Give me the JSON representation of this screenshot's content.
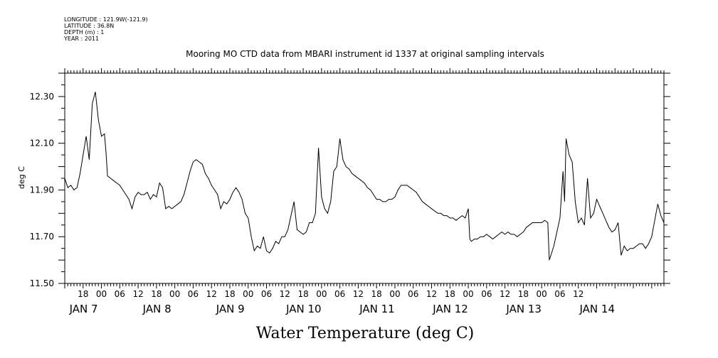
{
  "header": {
    "longitude": "LONGITUDE : 121.9W(-121.9)",
    "latitude": "LATITUDE : 36.8N",
    "depth": "DEPTH (m) : 1",
    "year": "YEAR : 2011"
  },
  "chart_data": {
    "type": "line",
    "title": "Mooring MO CTD data from MBARI instrument id 1337 at original sampling intervals",
    "xlabel": "Water Temperature (deg C)",
    "ylabel": "deg C",
    "ylim": [
      11.5,
      12.4
    ],
    "y_ticks": [
      "11.50",
      "11.70",
      "11.90",
      "12.10",
      "12.30"
    ],
    "y_tick_values": [
      11.5,
      11.7,
      11.9,
      12.1,
      12.3
    ],
    "xlim": [
      "2011-01-06T12:00",
      "2011-01-14T16:00"
    ],
    "x_hour_ticks": [
      {
        "t": "2011-01-06T18:00",
        "label": "18"
      },
      {
        "t": "2011-01-07T00:00",
        "label": "00"
      },
      {
        "t": "2011-01-07T06:00",
        "label": "06"
      },
      {
        "t": "2011-01-07T12:00",
        "label": "12"
      },
      {
        "t": "2011-01-07T18:00",
        "label": "18"
      },
      {
        "t": "2011-01-08T00:00",
        "label": "00"
      },
      {
        "t": "2011-01-08T06:00",
        "label": "06"
      },
      {
        "t": "2011-01-08T12:00",
        "label": "12"
      },
      {
        "t": "2011-01-08T18:00",
        "label": "18"
      },
      {
        "t": "2011-01-09T00:00",
        "label": "00"
      },
      {
        "t": "2011-01-09T06:00",
        "label": "06"
      },
      {
        "t": "2011-01-09T12:00",
        "label": "12"
      },
      {
        "t": "2011-01-09T18:00",
        "label": "18"
      },
      {
        "t": "2011-01-10T00:00",
        "label": "00"
      },
      {
        "t": "2011-01-10T06:00",
        "label": "06"
      },
      {
        "t": "2011-01-10T12:00",
        "label": "12"
      },
      {
        "t": "2011-01-10T18:00",
        "label": "18"
      },
      {
        "t": "2011-01-11T00:00",
        "label": "00"
      },
      {
        "t": "2011-01-11T06:00",
        "label": "06"
      },
      {
        "t": "2011-01-11T12:00",
        "label": "12"
      },
      {
        "t": "2011-01-11T18:00",
        "label": "18"
      },
      {
        "t": "2011-01-12T00:00",
        "label": "00"
      },
      {
        "t": "2011-01-12T06:00",
        "label": "06"
      },
      {
        "t": "2011-01-12T12:00",
        "label": "12"
      },
      {
        "t": "2011-01-12T18:00",
        "label": "18"
      },
      {
        "t": "2011-01-13T00:00",
        "label": "00"
      },
      {
        "t": "2011-01-13T06:00",
        "label": "06"
      },
      {
        "t": "2011-01-13T12:00",
        "label": "12"
      }
    ],
    "x_day_labels": [
      {
        "t": "2011-01-07T00:00",
        "label": "JAN  7"
      },
      {
        "t": "2011-01-08T00:00",
        "label": "JAN  8"
      },
      {
        "t": "2011-01-09T00:00",
        "label": "JAN  9"
      },
      {
        "t": "2011-01-10T00:00",
        "label": "JAN 10"
      },
      {
        "t": "2011-01-11T00:00",
        "label": "JAN 11"
      },
      {
        "t": "2011-01-12T00:00",
        "label": "JAN 12"
      },
      {
        "t": "2011-01-13T00:00",
        "label": "JAN 13"
      },
      {
        "t": "2011-01-14T00:00",
        "label": "JAN 14"
      }
    ],
    "grid": false,
    "series": [
      {
        "color": "#000000",
        "points": [
          [
            "2011-01-06T12:00",
            11.95
          ],
          [
            "2011-01-06T13:00",
            11.91
          ],
          [
            "2011-01-06T14:00",
            11.92
          ],
          [
            "2011-01-06T15:00",
            11.9
          ],
          [
            "2011-01-06T16:00",
            11.91
          ],
          [
            "2011-01-06T17:00",
            11.97
          ],
          [
            "2011-01-06T18:00",
            12.05
          ],
          [
            "2011-01-06T19:00",
            12.13
          ],
          [
            "2011-01-06T20:00",
            12.03
          ],
          [
            "2011-01-06T21:00",
            12.27
          ],
          [
            "2011-01-06T22:00",
            12.32
          ],
          [
            "2011-01-06T23:00",
            12.2
          ],
          [
            "2011-01-07T00:00",
            12.13
          ],
          [
            "2011-01-07T01:00",
            12.14
          ],
          [
            "2011-01-07T01:30",
            12.06
          ],
          [
            "2011-01-07T02:00",
            11.96
          ],
          [
            "2011-01-07T03:00",
            11.95
          ],
          [
            "2011-01-07T04:00",
            11.94
          ],
          [
            "2011-01-07T05:00",
            11.93
          ],
          [
            "2011-01-07T06:00",
            11.92
          ],
          [
            "2011-01-07T07:00",
            11.9
          ],
          [
            "2011-01-07T08:00",
            11.88
          ],
          [
            "2011-01-07T09:00",
            11.86
          ],
          [
            "2011-01-07T10:00",
            11.82
          ],
          [
            "2011-01-07T11:00",
            11.87
          ],
          [
            "2011-01-07T12:00",
            11.89
          ],
          [
            "2011-01-07T13:00",
            11.88
          ],
          [
            "2011-01-07T14:00",
            11.88
          ],
          [
            "2011-01-07T15:00",
            11.89
          ],
          [
            "2011-01-07T16:00",
            11.86
          ],
          [
            "2011-01-07T17:00",
            11.88
          ],
          [
            "2011-01-07T18:00",
            11.87
          ],
          [
            "2011-01-07T19:00",
            11.93
          ],
          [
            "2011-01-07T20:00",
            11.91
          ],
          [
            "2011-01-07T21:00",
            11.82
          ],
          [
            "2011-01-07T22:00",
            11.83
          ],
          [
            "2011-01-07T23:00",
            11.82
          ],
          [
            "2011-01-08T00:00",
            11.83
          ],
          [
            "2011-01-08T01:00",
            11.84
          ],
          [
            "2011-01-08T02:00",
            11.85
          ],
          [
            "2011-01-08T03:00",
            11.88
          ],
          [
            "2011-01-08T04:00",
            11.93
          ],
          [
            "2011-01-08T05:00",
            11.98
          ],
          [
            "2011-01-08T06:00",
            12.02
          ],
          [
            "2011-01-08T07:00",
            12.03
          ],
          [
            "2011-01-08T08:00",
            12.02
          ],
          [
            "2011-01-08T09:00",
            12.01
          ],
          [
            "2011-01-08T10:00",
            11.97
          ],
          [
            "2011-01-08T11:00",
            11.95
          ],
          [
            "2011-01-08T12:00",
            11.92
          ],
          [
            "2011-01-08T13:00",
            11.9
          ],
          [
            "2011-01-08T14:00",
            11.88
          ],
          [
            "2011-01-08T15:00",
            11.82
          ],
          [
            "2011-01-08T16:00",
            11.85
          ],
          [
            "2011-01-08T17:00",
            11.84
          ],
          [
            "2011-01-08T18:00",
            11.86
          ],
          [
            "2011-01-08T19:00",
            11.89
          ],
          [
            "2011-01-08T20:00",
            11.91
          ],
          [
            "2011-01-08T21:00",
            11.89
          ],
          [
            "2011-01-08T22:00",
            11.86
          ],
          [
            "2011-01-08T23:00",
            11.8
          ],
          [
            "2011-01-09T00:00",
            11.78
          ],
          [
            "2011-01-09T01:00",
            11.7
          ],
          [
            "2011-01-09T02:00",
            11.64
          ],
          [
            "2011-01-09T03:00",
            11.66
          ],
          [
            "2011-01-09T04:00",
            11.65
          ],
          [
            "2011-01-09T05:00",
            11.7
          ],
          [
            "2011-01-09T06:00",
            11.64
          ],
          [
            "2011-01-09T07:00",
            11.63
          ],
          [
            "2011-01-09T08:00",
            11.65
          ],
          [
            "2011-01-09T09:00",
            11.68
          ],
          [
            "2011-01-09T10:00",
            11.67
          ],
          [
            "2011-01-09T11:00",
            11.7
          ],
          [
            "2011-01-09T12:00",
            11.7
          ],
          [
            "2011-01-09T13:00",
            11.73
          ],
          [
            "2011-01-09T14:00",
            11.79
          ],
          [
            "2011-01-09T15:00",
            11.85
          ],
          [
            "2011-01-09T16:00",
            11.73
          ],
          [
            "2011-01-09T17:00",
            11.72
          ],
          [
            "2011-01-09T18:00",
            11.71
          ],
          [
            "2011-01-09T19:00",
            11.72
          ],
          [
            "2011-01-09T20:00",
            11.76
          ],
          [
            "2011-01-09T21:00",
            11.76
          ],
          [
            "2011-01-09T22:00",
            11.8
          ],
          [
            "2011-01-09T23:00",
            12.08
          ],
          [
            "2011-01-10T00:00",
            11.87
          ],
          [
            "2011-01-10T01:00",
            11.82
          ],
          [
            "2011-01-10T02:00",
            11.8
          ],
          [
            "2011-01-10T03:00",
            11.85
          ],
          [
            "2011-01-10T04:00",
            11.98
          ],
          [
            "2011-01-10T05:00",
            12.0
          ],
          [
            "2011-01-10T06:00",
            12.12
          ],
          [
            "2011-01-10T07:00",
            12.03
          ],
          [
            "2011-01-10T08:00",
            12.0
          ],
          [
            "2011-01-10T09:00",
            11.99
          ],
          [
            "2011-01-10T10:00",
            11.97
          ],
          [
            "2011-01-10T11:00",
            11.96
          ],
          [
            "2011-01-10T12:00",
            11.95
          ],
          [
            "2011-01-10T13:00",
            11.94
          ],
          [
            "2011-01-10T14:00",
            11.93
          ],
          [
            "2011-01-10T15:00",
            11.91
          ],
          [
            "2011-01-10T16:00",
            11.9
          ],
          [
            "2011-01-10T17:00",
            11.88
          ],
          [
            "2011-01-10T18:00",
            11.86
          ],
          [
            "2011-01-10T19:00",
            11.86
          ],
          [
            "2011-01-10T20:00",
            11.85
          ],
          [
            "2011-01-10T21:00",
            11.85
          ],
          [
            "2011-01-10T22:00",
            11.86
          ],
          [
            "2011-01-10T23:00",
            11.86
          ],
          [
            "2011-01-11T00:00",
            11.87
          ],
          [
            "2011-01-11T01:00",
            11.9
          ],
          [
            "2011-01-11T02:00",
            11.92
          ],
          [
            "2011-01-11T03:00",
            11.92
          ],
          [
            "2011-01-11T04:00",
            11.92
          ],
          [
            "2011-01-11T05:00",
            11.91
          ],
          [
            "2011-01-11T06:00",
            11.9
          ],
          [
            "2011-01-11T07:00",
            11.89
          ],
          [
            "2011-01-11T08:00",
            11.87
          ],
          [
            "2011-01-11T09:00",
            11.85
          ],
          [
            "2011-01-11T10:00",
            11.84
          ],
          [
            "2011-01-11T11:00",
            11.83
          ],
          [
            "2011-01-11T12:00",
            11.82
          ],
          [
            "2011-01-11T13:00",
            11.81
          ],
          [
            "2011-01-11T14:00",
            11.8
          ],
          [
            "2011-01-11T15:00",
            11.8
          ],
          [
            "2011-01-11T16:00",
            11.79
          ],
          [
            "2011-01-11T17:00",
            11.79
          ],
          [
            "2011-01-11T18:00",
            11.78
          ],
          [
            "2011-01-11T19:00",
            11.78
          ],
          [
            "2011-01-11T20:00",
            11.77
          ],
          [
            "2011-01-11T21:00",
            11.78
          ],
          [
            "2011-01-11T22:00",
            11.79
          ],
          [
            "2011-01-11T23:00",
            11.78
          ],
          [
            "2011-01-12T00:00",
            11.82
          ],
          [
            "2011-01-12T00:30",
            11.69
          ],
          [
            "2011-01-12T01:00",
            11.68
          ],
          [
            "2011-01-12T02:00",
            11.69
          ],
          [
            "2011-01-12T03:00",
            11.69
          ],
          [
            "2011-01-12T04:00",
            11.7
          ],
          [
            "2011-01-12T05:00",
            11.7
          ],
          [
            "2011-01-12T06:00",
            11.71
          ],
          [
            "2011-01-12T07:00",
            11.7
          ],
          [
            "2011-01-12T08:00",
            11.69
          ],
          [
            "2011-01-12T09:00",
            11.7
          ],
          [
            "2011-01-12T10:00",
            11.71
          ],
          [
            "2011-01-12T11:00",
            11.72
          ],
          [
            "2011-01-12T12:00",
            11.71
          ],
          [
            "2011-01-12T13:00",
            11.72
          ],
          [
            "2011-01-12T14:00",
            11.71
          ],
          [
            "2011-01-12T15:00",
            11.71
          ],
          [
            "2011-01-12T16:00",
            11.7
          ],
          [
            "2011-01-12T17:00",
            11.71
          ],
          [
            "2011-01-12T18:00",
            11.72
          ],
          [
            "2011-01-12T19:00",
            11.74
          ],
          [
            "2011-01-12T20:00",
            11.75
          ],
          [
            "2011-01-12T21:00",
            11.76
          ],
          [
            "2011-01-12T22:00",
            11.76
          ],
          [
            "2011-01-12T23:00",
            11.76
          ],
          [
            "2011-01-13T00:00",
            11.76
          ],
          [
            "2011-01-13T01:00",
            11.77
          ],
          [
            "2011-01-13T02:00",
            11.76
          ],
          [
            "2011-01-13T02:30",
            11.6
          ],
          [
            "2011-01-13T03:00",
            11.62
          ],
          [
            "2011-01-13T04:00",
            11.66
          ],
          [
            "2011-01-13T05:00",
            11.72
          ],
          [
            "2011-01-13T06:00",
            11.78
          ],
          [
            "2011-01-13T07:00",
            11.98
          ],
          [
            "2011-01-13T07:30",
            11.85
          ],
          [
            "2011-01-13T08:00",
            12.12
          ],
          [
            "2011-01-13T09:00",
            12.05
          ],
          [
            "2011-01-13T10:00",
            12.02
          ],
          [
            "2011-01-13T11:00",
            11.85
          ],
          [
            "2011-01-13T12:00",
            11.76
          ],
          [
            "2011-01-13T13:00",
            11.78
          ],
          [
            "2011-01-13T14:00",
            11.75
          ],
          [
            "2011-01-13T15:00",
            11.95
          ],
          [
            "2011-01-13T16:00",
            11.78
          ],
          [
            "2011-01-13T17:00",
            11.8
          ],
          [
            "2011-01-13T18:00",
            11.86
          ],
          [
            "2011-01-13T19:00",
            11.83
          ],
          [
            "2011-01-13T20:00",
            11.8
          ],
          [
            "2011-01-13T21:00",
            11.77
          ],
          [
            "2011-01-13T22:00",
            11.74
          ],
          [
            "2011-01-13T23:00",
            11.72
          ],
          [
            "2011-01-14T00:00",
            11.73
          ],
          [
            "2011-01-14T01:00",
            11.76
          ],
          [
            "2011-01-14T02:00",
            11.62
          ],
          [
            "2011-01-14T03:00",
            11.66
          ],
          [
            "2011-01-14T04:00",
            11.64
          ],
          [
            "2011-01-14T05:00",
            11.65
          ],
          [
            "2011-01-14T06:00",
            11.65
          ],
          [
            "2011-01-14T07:00",
            11.66
          ],
          [
            "2011-01-14T08:00",
            11.67
          ],
          [
            "2011-01-14T09:00",
            11.67
          ],
          [
            "2011-01-14T10:00",
            11.65
          ],
          [
            "2011-01-14T11:00",
            11.67
          ],
          [
            "2011-01-14T12:00",
            11.7
          ],
          [
            "2011-01-14T13:00",
            11.77
          ],
          [
            "2011-01-14T14:00",
            11.84
          ],
          [
            "2011-01-14T15:00",
            11.79
          ],
          [
            "2011-01-14T16:00",
            11.76
          ]
        ]
      }
    ]
  }
}
